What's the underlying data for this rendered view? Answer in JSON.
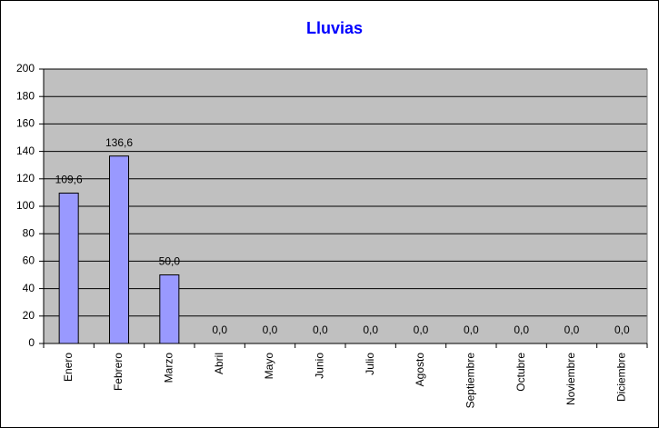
{
  "chart_data": {
    "type": "bar",
    "title": "Lluvias",
    "categories": [
      "Enero",
      "Febrero",
      "Marzo",
      "Abril",
      "Mayo",
      "Junio",
      "Julio",
      "Agosto",
      "Septiembre",
      "Octubre",
      "Noviembre",
      "Diciembre"
    ],
    "values": [
      109.6,
      136.6,
      50.0,
      0,
      0,
      0,
      0,
      0,
      0,
      0,
      0,
      0
    ],
    "value_labels": [
      "109,6",
      "136,6",
      "50,0",
      "0,0",
      "0,0",
      "0,0",
      "0,0",
      "0,0",
      "0,0",
      "0,0",
      "0,0",
      "0,0"
    ],
    "color": "#9999ff",
    "ylim": [
      0,
      200
    ],
    "yticks": [
      0,
      20,
      40,
      60,
      80,
      100,
      120,
      140,
      160,
      180,
      200
    ],
    "grid": true
  }
}
